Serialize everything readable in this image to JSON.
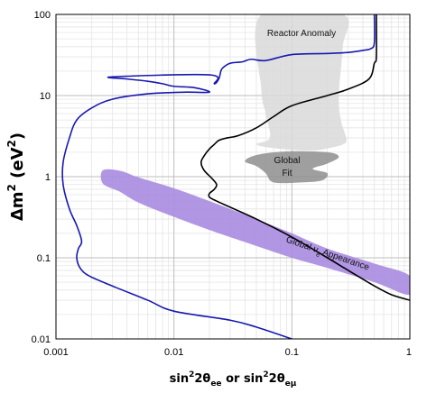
{
  "chart_data": {
    "type": "line",
    "title": "",
    "xscale": "log",
    "yscale": "log",
    "xlim": [
      0.001,
      1
    ],
    "ylim": [
      0.01,
      100
    ],
    "grid": true,
    "legend": "none",
    "x_ticks": [
      {
        "value": 0.001,
        "label": "0.001"
      },
      {
        "value": 0.01,
        "label": "0.01"
      },
      {
        "value": 0.1,
        "label": "0.1"
      },
      {
        "value": 1,
        "label": "1"
      }
    ],
    "y_ticks": [
      {
        "value": 0.01,
        "label": "0.01"
      },
      {
        "value": 0.1,
        "label": "0.1"
      },
      {
        "value": 1,
        "label": "1"
      },
      {
        "value": 10,
        "label": "10"
      },
      {
        "value": 100,
        "label": "100"
      }
    ],
    "xlabel": {
      "p1": "sin",
      "s1": "2",
      "p2": "2θ",
      "s2": "ee",
      "p3": " or sin",
      "s3": "2",
      "p4": "2θ",
      "s4": "eμ"
    },
    "ylabel": {
      "p1": "Δm",
      "s1": "2",
      "p2": " (eV",
      "s2": "2",
      "p3": ")"
    },
    "annotations": {
      "reactor": "Reactor Anomaly",
      "global_fit_1": "Global",
      "global_fit_2": "Fit",
      "appearance_a": "Global ",
      "appearance_nu": "ν",
      "appearance_e": "e",
      "appearance_b": " Appearance"
    },
    "colors": {
      "blue_curve": "#1818b0",
      "black_curve": "#000000",
      "reactor_band": "#d9d9d9",
      "global_fit": "#8e8e8e",
      "appearance_band": "#a98be0"
    },
    "regions": [
      {
        "id": "reactor-anomaly",
        "kind": "band",
        "points": [
          [
            0.055,
            100
          ],
          [
            0.27,
            100
          ],
          [
            0.27,
            40
          ],
          [
            0.25,
            10
          ],
          [
            0.26,
            5
          ],
          [
            0.29,
            2.9
          ],
          [
            0.27,
            2.5
          ],
          [
            0.22,
            2.3
          ],
          [
            0.15,
            2.1
          ],
          [
            0.08,
            2.2
          ],
          [
            0.05,
            2.5
          ],
          [
            0.065,
            3
          ],
          [
            0.06,
            6
          ],
          [
            0.055,
            12
          ],
          [
            0.055,
            100
          ]
        ]
      },
      {
        "id": "global-fit",
        "kind": "blob",
        "points": [
          [
            0.04,
            1.55
          ],
          [
            0.05,
            1.85
          ],
          [
            0.09,
            2.05
          ],
          [
            0.2,
            2
          ],
          [
            0.25,
            1.75
          ],
          [
            0.2,
            1.45
          ],
          [
            0.15,
            1.25
          ],
          [
            0.2,
            1.1
          ],
          [
            0.18,
            0.9
          ],
          [
            0.12,
            0.85
          ],
          [
            0.07,
            0.85
          ],
          [
            0.06,
            1.1
          ],
          [
            0.05,
            1.35
          ],
          [
            0.04,
            1.55
          ]
        ]
      },
      {
        "id": "appearance",
        "kind": "band",
        "points": [
          [
            0.0025,
            1.2
          ],
          [
            0.0035,
            1.18
          ],
          [
            0.005,
            0.98
          ],
          [
            0.01,
            0.72
          ],
          [
            0.02,
            0.5
          ],
          [
            0.05,
            0.3
          ],
          [
            0.1,
            0.2
          ],
          [
            0.2,
            0.13
          ],
          [
            0.5,
            0.085
          ],
          [
            1,
            0.06
          ],
          [
            1,
            0.035
          ],
          [
            0.5,
            0.05
          ],
          [
            0.2,
            0.075
          ],
          [
            0.1,
            0.1
          ],
          [
            0.05,
            0.14
          ],
          [
            0.02,
            0.22
          ],
          [
            0.01,
            0.32
          ],
          [
            0.005,
            0.48
          ],
          [
            0.0035,
            0.65
          ],
          [
            0.0025,
            0.82
          ],
          [
            0.0025,
            1.2
          ]
        ]
      }
    ],
    "series": [
      {
        "id": "blue-contour",
        "color": "#1818b0",
        "x": [
          0.5,
          0.5,
          0.47,
          0.4,
          0.3,
          0.2,
          0.1,
          0.06,
          0.045,
          0.038,
          0.03,
          0.026,
          0.025,
          0.024,
          0.022,
          0.02,
          0.003,
          0.004,
          0.006,
          0.008,
          0.01,
          0.015,
          0.02,
          0.012,
          0.006,
          0.003,
          0.002,
          0.0015,
          0.0013,
          0.00115,
          0.00115,
          0.0013,
          0.0015,
          0.00165,
          0.00155,
          0.0015,
          0.0016,
          0.0019,
          0.003,
          0.006,
          0.01,
          0.03,
          0.05,
          0.1
        ],
        "y": [
          100,
          45,
          38,
          36,
          34,
          33,
          32,
          27,
          28,
          26,
          25,
          22,
          20,
          16,
          14,
          18,
          17,
          16,
          15,
          14,
          13,
          12.5,
          11,
          11,
          10.5,
          9,
          7,
          5,
          3,
          1.5,
          0.8,
          0.4,
          0.25,
          0.16,
          0.13,
          0.1,
          0.075,
          0.06,
          0.045,
          0.03,
          0.022,
          0.017,
          0.014,
          0.01
        ]
      },
      {
        "id": "black-contour",
        "color": "#000000",
        "x": [
          0.52,
          0.52,
          0.5,
          0.45,
          0.3,
          0.2,
          0.1,
          0.07,
          0.05,
          0.035,
          0.028,
          0.024,
          0.022,
          0.02,
          0.018,
          0.017,
          0.018,
          0.021,
          0.023,
          0.022,
          0.02,
          0.02,
          0.023,
          0.03,
          0.05,
          0.1,
          0.2,
          0.3,
          0.5,
          0.7,
          1
        ],
        "y": [
          100,
          30,
          25,
          16,
          12,
          10,
          7.5,
          5.5,
          4,
          3.2,
          3,
          2.8,
          2.5,
          2.2,
          1.8,
          1.5,
          1.2,
          0.95,
          0.8,
          0.7,
          0.62,
          0.56,
          0.5,
          0.42,
          0.3,
          0.18,
          0.1,
          0.07,
          0.045,
          0.035,
          0.03
        ]
      }
    ]
  }
}
